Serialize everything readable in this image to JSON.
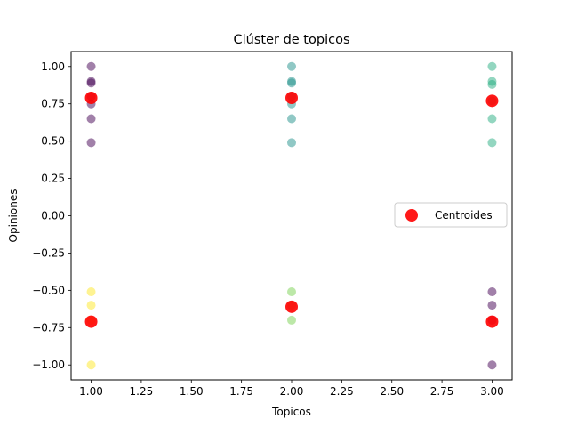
{
  "chart_data": {
    "type": "scatter",
    "title": "Clúster de  topicos",
    "xlabel": "Topicos",
    "ylabel": "Opiniones",
    "xlim": [
      0.9,
      3.1
    ],
    "ylim": [
      -1.1,
      1.1
    ],
    "xticks": [
      1.0,
      1.25,
      1.5,
      1.75,
      2.0,
      2.25,
      2.5,
      2.75,
      3.0
    ],
    "xtick_labels": [
      "1.00",
      "1.25",
      "1.50",
      "1.75",
      "2.00",
      "2.25",
      "2.50",
      "2.75",
      "3.00"
    ],
    "yticks": [
      1.0,
      0.75,
      0.5,
      0.25,
      0.0,
      -0.25,
      -0.5,
      -0.75,
      -1.0
    ],
    "ytick_labels": [
      "1.00",
      "0.75",
      "0.50",
      "0.25",
      "0.00",
      "−0.25",
      "−0.50",
      "−0.75",
      "−1.00"
    ],
    "grid": false,
    "legend_position": "right",
    "series": [
      {
        "color": "#440154",
        "points": [
          {
            "x": 1.0,
            "y": 1.0
          },
          {
            "x": 1.0,
            "y": 0.9
          },
          {
            "x": 1.0,
            "y": 0.89
          },
          {
            "x": 1.0,
            "y": 0.8
          },
          {
            "x": 1.0,
            "y": 0.75
          },
          {
            "x": 1.0,
            "y": 0.65
          },
          {
            "x": 1.0,
            "y": 0.49
          }
        ]
      },
      {
        "color": "#21918c",
        "points": [
          {
            "x": 2.0,
            "y": 1.0
          },
          {
            "x": 2.0,
            "y": 0.9
          },
          {
            "x": 2.0,
            "y": 0.89
          },
          {
            "x": 2.0,
            "y": 0.8
          },
          {
            "x": 2.0,
            "y": 0.75
          },
          {
            "x": 2.0,
            "y": 0.65
          },
          {
            "x": 2.0,
            "y": 0.49
          }
        ]
      },
      {
        "color": "#27ad81",
        "points": [
          {
            "x": 3.0,
            "y": 1.0
          },
          {
            "x": 3.0,
            "y": 0.9
          },
          {
            "x": 3.0,
            "y": 0.88
          },
          {
            "x": 3.0,
            "y": 0.77
          },
          {
            "x": 3.0,
            "y": 0.65
          },
          {
            "x": 3.0,
            "y": 0.49
          }
        ]
      },
      {
        "color": "#fde725",
        "points": [
          {
            "x": 1.0,
            "y": -0.51
          },
          {
            "x": 1.0,
            "y": -0.6
          },
          {
            "x": 1.0,
            "y": -0.7
          },
          {
            "x": 1.0,
            "y": -1.0
          }
        ]
      },
      {
        "color": "#7ad151",
        "points": [
          {
            "x": 2.0,
            "y": -0.51
          },
          {
            "x": 2.0,
            "y": -0.6
          },
          {
            "x": 2.0,
            "y": -0.7
          }
        ]
      },
      {
        "color": "#440154",
        "points": [
          {
            "x": 3.0,
            "y": -0.51
          },
          {
            "x": 3.0,
            "y": -0.6
          },
          {
            "x": 3.0,
            "y": -0.7
          },
          {
            "x": 3.0,
            "y": -1.0
          }
        ]
      },
      {
        "name": "Centroides",
        "color": "#ff0000",
        "points": [
          {
            "x": 1.0,
            "y": 0.79
          },
          {
            "x": 2.0,
            "y": 0.79
          },
          {
            "x": 3.0,
            "y": 0.77
          },
          {
            "x": 1.0,
            "y": -0.71
          },
          {
            "x": 2.0,
            "y": -0.61
          },
          {
            "x": 3.0,
            "y": -0.71
          }
        ]
      }
    ]
  }
}
